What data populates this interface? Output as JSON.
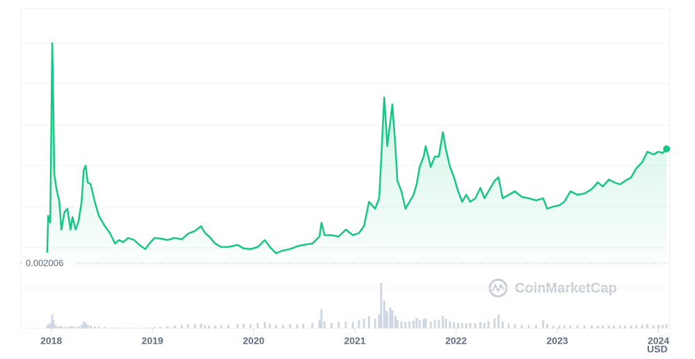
{
  "chart_data": {
    "type": "line",
    "color": "#16c784",
    "volume_color": "#cfd6e4",
    "reference_value": 0.002006,
    "watermark": "CoinMarketCap",
    "currency": "USD",
    "xlim": [
      2017.7,
      2024.11
    ],
    "xticks": [
      2018,
      2019,
      2020,
      2021,
      2022,
      2023,
      2024
    ],
    "ylim": [
      0.000986,
      0.012446
    ],
    "volume_lim": [
      0,
      70
    ],
    "x": [
      2017.96,
      2017.97,
      2017.99,
      2018.01,
      2018.02,
      2018.03,
      2018.05,
      2018.08,
      2018.1,
      2018.13,
      2018.16,
      2018.19,
      2018.21,
      2018.24,
      2018.27,
      2018.3,
      2018.32,
      2018.34,
      2018.36,
      2018.39,
      2018.43,
      2018.47,
      2018.53,
      2018.58,
      2018.63,
      2018.67,
      2018.71,
      2018.76,
      2018.82,
      2018.87,
      2018.93,
      2018.97,
      2019.02,
      2019.08,
      2019.15,
      2019.22,
      2019.29,
      2019.35,
      2019.42,
      2019.48,
      2019.52,
      2019.56,
      2019.62,
      2019.68,
      2019.75,
      2019.84,
      2019.9,
      2019.97,
      2020.04,
      2020.11,
      2020.16,
      2020.22,
      2020.29,
      2020.36,
      2020.43,
      2020.49,
      2020.58,
      2020.65,
      2020.67,
      2020.7,
      2020.77,
      2020.84,
      2020.91,
      2020.98,
      2021.04,
      2021.09,
      2021.14,
      2021.2,
      2021.24,
      2021.26,
      2021.29,
      2021.31,
      2021.32,
      2021.35,
      2021.37,
      2021.4,
      2021.42,
      2021.46,
      2021.5,
      2021.54,
      2021.58,
      2021.61,
      2021.64,
      2021.68,
      2021.7,
      2021.75,
      2021.79,
      2021.83,
      2021.87,
      2021.9,
      2021.94,
      2021.98,
      2022.02,
      2022.06,
      2022.1,
      2022.14,
      2022.19,
      2022.24,
      2022.28,
      2022.32,
      2022.38,
      2022.42,
      2022.46,
      2022.52,
      2022.58,
      2022.65,
      2022.72,
      2022.79,
      2022.86,
      2022.9,
      2022.96,
      2023.02,
      2023.07,
      2023.13,
      2023.2,
      2023.27,
      2023.34,
      2023.4,
      2023.45,
      2023.51,
      2023.56,
      2023.62,
      2023.67,
      2023.73,
      2023.78,
      2023.84,
      2023.89,
      2023.95,
      2024.0,
      2024.04,
      2024.08
    ],
    "values": [
      0.002456,
      0.004046,
      0.003746,
      0.011486,
      0.008846,
      0.005846,
      0.005246,
      0.004646,
      0.003446,
      0.004196,
      0.004346,
      0.003446,
      0.003986,
      0.003446,
      0.003806,
      0.004646,
      0.005996,
      0.006206,
      0.005486,
      0.005396,
      0.004646,
      0.004046,
      0.003596,
      0.003296,
      0.002846,
      0.002996,
      0.002906,
      0.003086,
      0.002996,
      0.002786,
      0.002606,
      0.002846,
      0.003086,
      0.003056,
      0.002996,
      0.003086,
      0.003026,
      0.003266,
      0.003386,
      0.003596,
      0.003296,
      0.003146,
      0.002846,
      0.002696,
      0.002696,
      0.002786,
      0.002636,
      0.002606,
      0.002696,
      0.002996,
      0.002696,
      0.002426,
      0.002546,
      0.002606,
      0.002726,
      0.002786,
      0.002846,
      0.003146,
      0.003746,
      0.003206,
      0.003206,
      0.003146,
      0.003446,
      0.003206,
      0.003296,
      0.003596,
      0.004646,
      0.004346,
      0.004796,
      0.006446,
      0.009146,
      0.007796,
      0.007046,
      0.008096,
      0.008846,
      0.007046,
      0.005546,
      0.005096,
      0.004346,
      0.004646,
      0.004946,
      0.005396,
      0.006146,
      0.006596,
      0.007046,
      0.006146,
      0.006596,
      0.006596,
      0.007646,
      0.006896,
      0.006146,
      0.005696,
      0.005096,
      0.004646,
      0.004946,
      0.004646,
      0.004796,
      0.005246,
      0.004796,
      0.005096,
      0.005546,
      0.005696,
      0.004796,
      0.004946,
      0.005096,
      0.004856,
      0.004796,
      0.004706,
      0.004796,
      0.004346,
      0.004436,
      0.004496,
      0.004646,
      0.005096,
      0.004946,
      0.005006,
      0.005186,
      0.005486,
      0.005306,
      0.005606,
      0.005486,
      0.005396,
      0.005546,
      0.005696,
      0.006086,
      0.006356,
      0.006806,
      0.006686,
      0.006806,
      0.006746,
      0.006926
    ],
    "volumes": [
      3,
      6,
      8,
      20,
      12,
      6,
      4,
      3,
      3,
      2,
      2,
      3,
      3,
      2,
      3,
      5,
      10,
      8,
      5,
      4,
      3,
      2,
      2,
      1,
      1,
      1,
      1,
      1,
      1,
      1,
      1,
      1,
      2,
      2,
      3,
      4,
      5,
      6,
      6,
      7,
      5,
      4,
      4,
      5,
      5,
      6,
      7,
      6,
      8,
      9,
      7,
      5,
      5,
      6,
      6,
      7,
      8,
      12,
      28,
      10,
      8,
      9,
      10,
      9,
      12,
      14,
      18,
      14,
      20,
      65,
      40,
      25,
      22,
      30,
      26,
      18,
      12,
      10,
      9,
      10,
      11,
      15,
      12,
      13,
      14,
      10,
      12,
      12,
      18,
      14,
      10,
      9,
      8,
      8,
      7,
      8,
      7,
      9,
      8,
      10,
      14,
      20,
      10,
      7,
      6,
      5,
      5,
      5,
      12,
      6,
      4,
      4,
      4,
      4,
      4,
      4,
      4,
      4,
      4,
      4,
      4,
      4,
      4,
      4,
      5,
      5,
      6,
      5,
      5,
      5,
      6
    ]
  }
}
